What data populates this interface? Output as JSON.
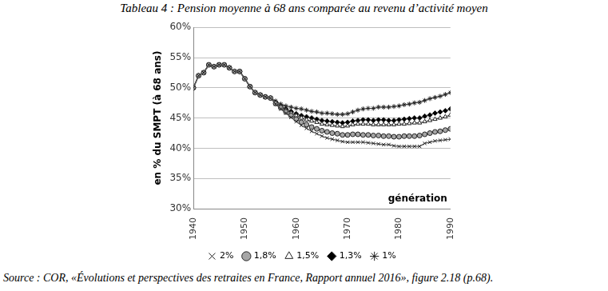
{
  "chart_data": {
    "type": "line",
    "title": "Tableau 4 : Pension moyenne à 68 ans comparée au revenu d’activité moyen",
    "source": "Source : COR, «Évolutions et perspectives des retraites en France, Rapport annuel 2016», figure 2.18 (p.68).",
    "y_label": "en % du SMPT (à 68 ans)",
    "x_label": "génération",
    "x": [
      1940,
      1941,
      1942,
      1943,
      1944,
      1945,
      1946,
      1947,
      1948,
      1949,
      1950,
      1951,
      1952,
      1953,
      1954,
      1955,
      1956,
      1957,
      1958,
      1959,
      1960,
      1961,
      1962,
      1963,
      1964,
      1965,
      1966,
      1967,
      1968,
      1969,
      1970,
      1971,
      1972,
      1973,
      1974,
      1975,
      1976,
      1977,
      1978,
      1979,
      1980,
      1981,
      1982,
      1983,
      1984,
      1985,
      1986,
      1987,
      1988,
      1989,
      1990
    ],
    "series": [
      {
        "name": "2%",
        "color": "#404040",
        "marker": "crossRot",
        "values": [
          50,
          52,
          52.5,
          53.8,
          53.5,
          53.8,
          53.8,
          53.3,
          52.7,
          52.7,
          51.5,
          50.2,
          49.2,
          48.8,
          48.5,
          48.3,
          47.3,
          46.5,
          45.8,
          45.1,
          44.4,
          43.8,
          43.3,
          42.8,
          42.4,
          42,
          41.7,
          41.5,
          41.3,
          41.1,
          41,
          41,
          41,
          41,
          40.9,
          40.8,
          40.7,
          40.6,
          40.6,
          40.4,
          40.3,
          40.3,
          40.3,
          40.3,
          40.3,
          40.8,
          41,
          41.2,
          41.3,
          41.4,
          41.5
        ]
      },
      {
        "name": "1,8%",
        "color": "#a6a6a6",
        "marker": "circle",
        "values": [
          50,
          52,
          52.5,
          53.8,
          53.5,
          53.8,
          53.8,
          53.3,
          52.7,
          52.7,
          51.5,
          50.2,
          49.2,
          48.8,
          48.5,
          48.3,
          47.4,
          46.7,
          46,
          45.4,
          44.8,
          44.3,
          43.9,
          43.5,
          43.2,
          42.9,
          42.7,
          42.5,
          42.4,
          42.2,
          42.2,
          42.3,
          42.3,
          42.2,
          42.2,
          42.1,
          42.1,
          42,
          42,
          41.9,
          41.9,
          42,
          42,
          42,
          42.1,
          42.3,
          42.5,
          42.7,
          42.8,
          43,
          43.2
        ]
      },
      {
        "name": "1,5%",
        "color": "#ffffff",
        "marker": "triangle",
        "values": [
          50,
          52,
          52.5,
          53.8,
          53.5,
          53.8,
          53.8,
          53.3,
          52.7,
          52.7,
          51.5,
          50.2,
          49.2,
          48.8,
          48.5,
          48.3,
          47.5,
          46.9,
          46.3,
          45.8,
          45.4,
          45,
          44.7,
          44.5,
          44.3,
          44,
          43.9,
          43.8,
          43.7,
          43.6,
          43.7,
          43.9,
          44,
          44,
          44,
          43.9,
          43.9,
          43.9,
          43.9,
          43.9,
          44,
          44,
          44.1,
          44.2,
          44.2,
          44.4,
          44.6,
          44.8,
          45,
          45.2,
          45.5
        ]
      },
      {
        "name": "1,3%",
        "color": "#000000",
        "marker": "rectRot",
        "values": [
          50,
          52,
          52.5,
          53.8,
          53.5,
          53.8,
          53.8,
          53.3,
          52.7,
          52.7,
          51.5,
          50.2,
          49.2,
          48.8,
          48.5,
          48.3,
          47.6,
          47,
          46.5,
          46.1,
          45.7,
          45.4,
          45.2,
          45,
          44.8,
          44.6,
          44.5,
          44.4,
          44.3,
          44.2,
          44.3,
          44.5,
          44.6,
          44.7,
          44.7,
          44.6,
          44.7,
          44.7,
          44.6,
          44.6,
          44.7,
          44.8,
          44.9,
          45,
          45,
          45.3,
          45.5,
          45.8,
          46,
          46.2,
          46.5
        ]
      },
      {
        "name": "1%",
        "color": "#404040",
        "marker": "star",
        "values": [
          50,
          52,
          52.5,
          53.8,
          53.5,
          53.8,
          53.8,
          53.3,
          52.7,
          52.7,
          51.5,
          50.2,
          49.2,
          48.8,
          48.5,
          48.3,
          47.8,
          47.3,
          47,
          46.8,
          46.6,
          46.5,
          46.3,
          46.1,
          46,
          45.8,
          45.8,
          45.7,
          45.6,
          45.6,
          45.7,
          46,
          46.3,
          46.5,
          46.6,
          46.6,
          46.8,
          46.8,
          46.8,
          46.9,
          47,
          47.2,
          47.3,
          47.5,
          47.6,
          47.9,
          48.2,
          48.4,
          48.6,
          48.9,
          49.2
        ]
      }
    ],
    "xlim": [
      1940,
      1990
    ],
    "xticks": [
      1940,
      1950,
      1960,
      1970,
      1980,
      1990
    ],
    "ylim": [
      30,
      60
    ],
    "yticks": [
      {
        "value": 30,
        "label": "30%"
      },
      {
        "value": 35,
        "label": "35%"
      },
      {
        "value": 40,
        "label": "40%"
      },
      {
        "value": 45,
        "label": "45%"
      },
      {
        "value": 50,
        "label": "50%"
      },
      {
        "value": 55,
        "label": "55%"
      },
      {
        "value": 60,
        "label": "60%"
      }
    ],
    "grid": "y",
    "legend": "bottom"
  }
}
